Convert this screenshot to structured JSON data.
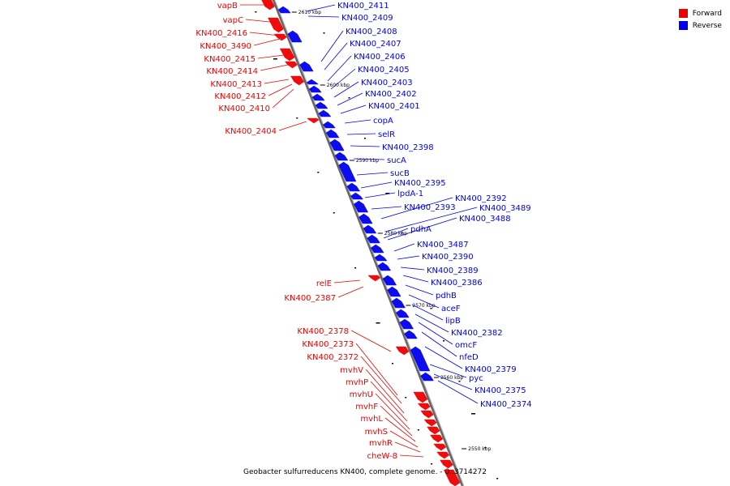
{
  "colors": {
    "forward": "#ee0000",
    "reverse": "#0000ee",
    "backbone": "#666666",
    "tick": "#000000"
  },
  "legend": [
    {
      "label": "Forward",
      "color": "#ee0000"
    },
    {
      "label": "Reverse",
      "color": "#0000ee"
    }
  ],
  "caption": "Geobacter sulfurreducens KN400, complete genome. - 0..3714272",
  "ticks": [
    {
      "label": "2610 kbp"
    },
    {
      "label": "2600 kbp"
    },
    {
      "label": "2590 kbp"
    },
    {
      "label": "2580 kbp"
    },
    {
      "label": "2570 kbp"
    },
    {
      "label": "2560 kbp"
    },
    {
      "label": "2550 kbp"
    }
  ],
  "forward_labels": [
    "vapB",
    "vapC",
    "KN400_2416",
    "KN400_3490",
    "KN400_2415",
    "KN400_2414",
    "KN400_2413",
    "KN400_2412",
    "KN400_2410",
    "KN400_2404",
    "relE",
    "KN400_2387",
    "KN400_2378",
    "KN400_2373",
    "KN400_2372",
    "mvhV",
    "mvhP",
    "mvhU",
    "mvhF",
    "mvhL",
    "mvhS",
    "mvhR",
    "cheW-8"
  ],
  "reverse_labels": [
    "KN400_2411",
    "KN400_2409",
    "KN400_2408",
    "KN400_2407",
    "KN400_2406",
    "KN400_2405",
    "KN400_2403",
    "KN400_2402",
    "KN400_2401",
    "copA",
    "selR",
    "KN400_2398",
    "sucA",
    "sucB",
    "KN400_2395",
    "lpdA-1",
    "KN400_2393",
    "KN400_2392",
    "KN400_3489",
    "KN400_3488",
    "pdhA",
    "KN400_3487",
    "KN400_2390",
    "KN400_2389",
    "KN400_2386",
    "pdhB",
    "aceF",
    "lipB",
    "KN400_2382",
    "omcF",
    "nfeD",
    "KN400_2379",
    "pyc",
    "KN400_2375",
    "KN400_2374"
  ]
}
